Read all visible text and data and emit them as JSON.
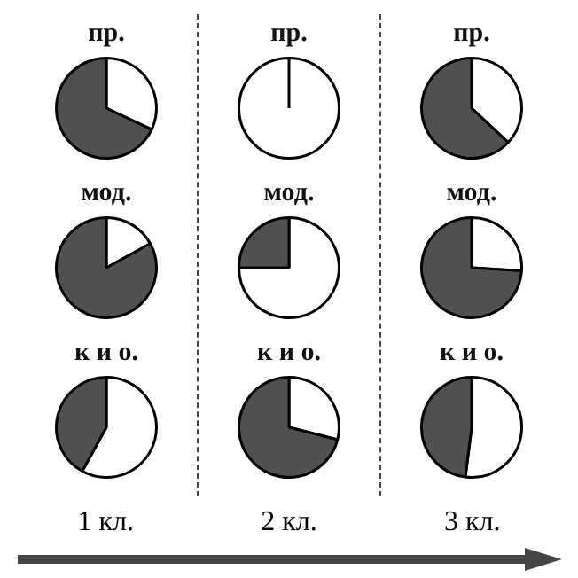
{
  "chart_data": [
    {
      "type": "pie",
      "title": "пр.",
      "categories": [
        null,
        null
      ],
      "values": [
        32,
        68
      ],
      "colors": [
        "#ffffff",
        "#505050"
      ],
      "legend": false
    },
    {
      "type": "pie",
      "title": "пр.",
      "categories": [
        null,
        null
      ],
      "values": [
        100,
        0
      ],
      "colors": [
        "#ffffff",
        "#505050"
      ],
      "legend": false
    },
    {
      "type": "pie",
      "title": "пр.",
      "categories": [
        null,
        null
      ],
      "values": [
        37,
        63
      ],
      "colors": [
        "#ffffff",
        "#505050"
      ],
      "legend": false
    },
    {
      "type": "pie",
      "title": "мод.",
      "categories": [
        null,
        null
      ],
      "values": [
        17,
        83
      ],
      "colors": [
        "#ffffff",
        "#505050"
      ],
      "legend": false
    },
    {
      "type": "pie",
      "title": "мод.",
      "categories": [
        null,
        null
      ],
      "values": [
        75,
        25
      ],
      "colors": [
        "#ffffff",
        "#505050"
      ],
      "legend": false
    },
    {
      "type": "pie",
      "title": "мод.",
      "categories": [
        null,
        null
      ],
      "values": [
        26,
        74
      ],
      "colors": [
        "#ffffff",
        "#505050"
      ],
      "legend": false
    },
    {
      "type": "pie",
      "title": "к и о.",
      "categories": [
        null,
        null
      ],
      "values": [
        58,
        42
      ],
      "colors": [
        "#ffffff",
        "#505050"
      ],
      "legend": false,
      "annotations": [
        "1 кл."
      ]
    },
    {
      "type": "pie",
      "title": "к и о.",
      "categories": [
        null,
        null
      ],
      "values": [
        29,
        71
      ],
      "colors": [
        "#ffffff",
        "#505050"
      ],
      "legend": false,
      "annotations": [
        "2 кл."
      ]
    },
    {
      "type": "pie",
      "title": "к и о.",
      "categories": [
        null,
        null
      ],
      "values": [
        52,
        48
      ],
      "colors": [
        "#ffffff",
        "#505050"
      ],
      "legend": false,
      "annotations": [
        "3 кл."
      ]
    }
  ]
}
